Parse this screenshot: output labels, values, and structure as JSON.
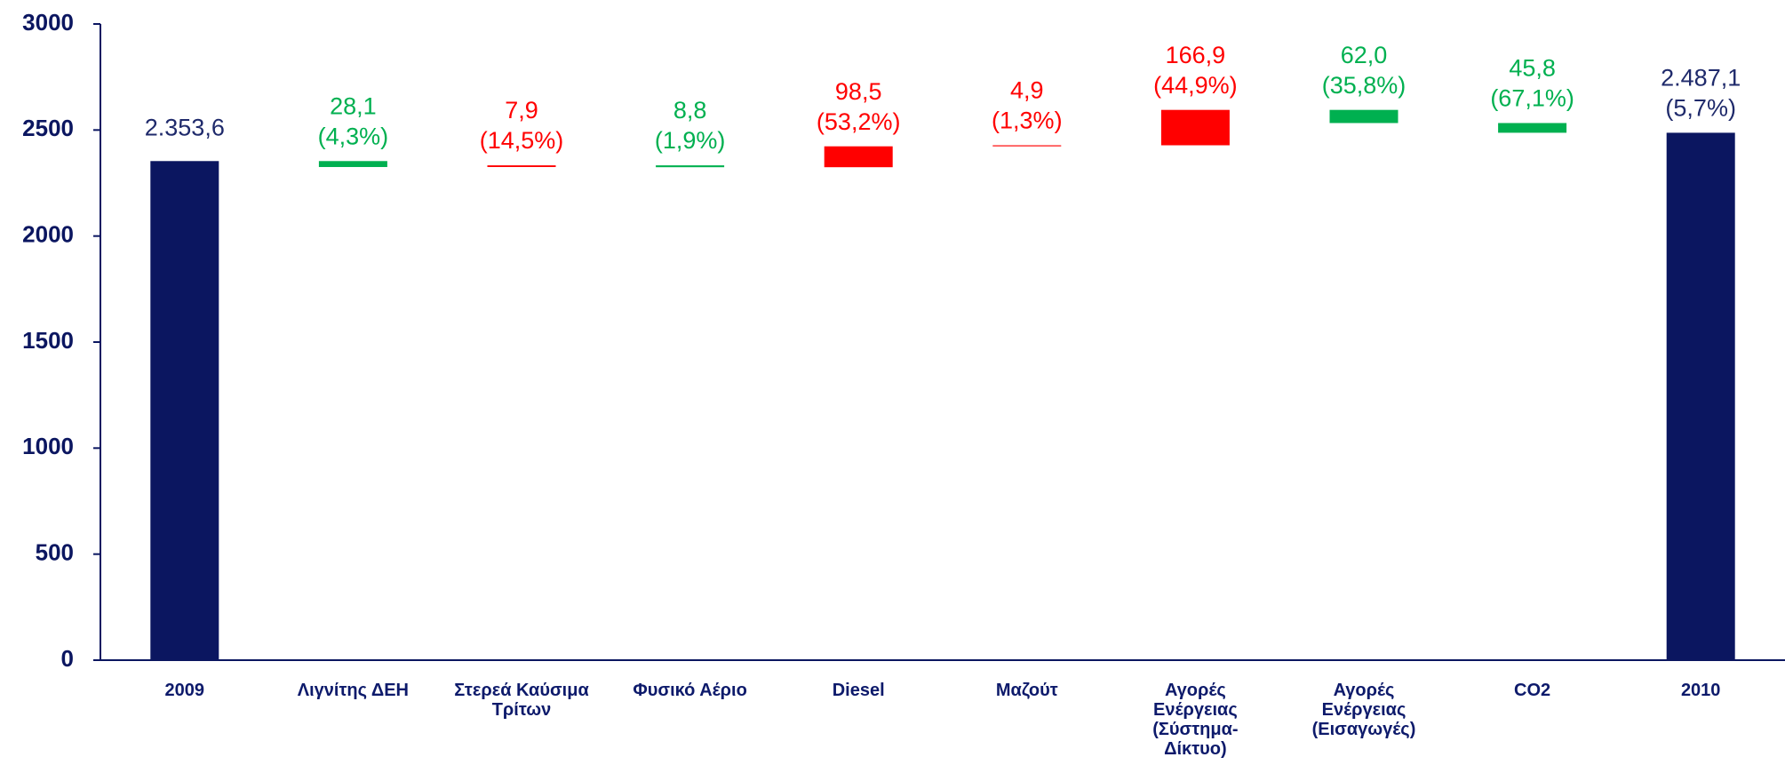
{
  "chart_data": {
    "type": "waterfall",
    "categories": [
      "2009",
      "Λιγνίτης ΔΕΗ",
      "Στερεά Καύσιμα\nΤρίτων",
      "Φυσικό Αέριο",
      "Diesel",
      "Μαζούτ",
      "Αγορές\nΕνέργειας\n(Σύστημα-\nΔίκτυο)",
      "Αγορές\nΕνέργειας\n(Εισαγωγές)",
      "CO2",
      "2010"
    ],
    "values": [
      2353.6,
      -28.1,
      7.9,
      -8.8,
      98.5,
      4.9,
      166.9,
      -62.0,
      -45.8,
      2487.1
    ],
    "value_labels": [
      "2.353,6",
      "28,1",
      "7,9",
      "8,8",
      "98,5",
      "4,9",
      "166,9",
      "62,0",
      "45,8",
      "2.487,1"
    ],
    "percent_labels": [
      null,
      "(4,3%)",
      "(14,5%)",
      "(1,9%)",
      "(53,2%)",
      "(1,3%)",
      "(44,9%)",
      "(35,8%)",
      "(67,1%)",
      "(5,7%)"
    ],
    "totals": [
      true,
      false,
      false,
      false,
      false,
      false,
      false,
      false,
      false,
      true
    ],
    "colors": {
      "total": "#0b1660",
      "increase": "#ff0000",
      "decrease": "#00b050",
      "total_label": "#1f2a6b"
    },
    "ylim": [
      0,
      3000
    ],
    "yticks": [
      0,
      500,
      1000,
      1500,
      2000,
      2500,
      3000
    ]
  }
}
